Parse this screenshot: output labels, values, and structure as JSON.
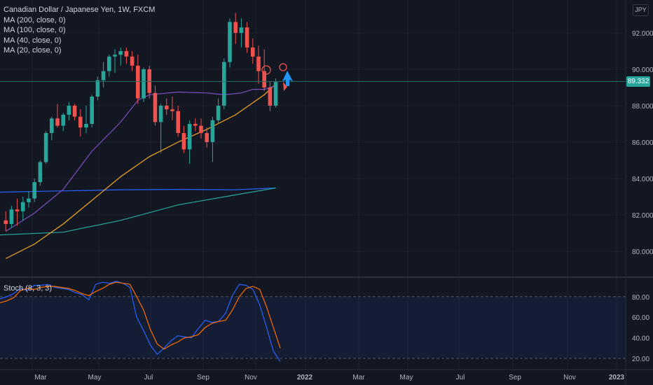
{
  "legend": {
    "symbol": "Canadian Dollar / Japanese Yen, 1W, FXCM",
    "ma_labels": [
      "MA (200, close, 0)",
      "MA (100, close, 0)",
      "MA (40, close, 0)",
      "MA (20, close, 0)"
    ]
  },
  "currency_badge": "JPY",
  "last_price_tag": "89.332",
  "stoch_label": "Stoch (8, 3, 3)",
  "colors": {
    "background": "#131722",
    "grid": "#1e222d",
    "up": "#26a69a",
    "down": "#ef5350",
    "ma20": "#7b4fc0",
    "ma40": "#f5a623",
    "ma100": "#26a69a",
    "ma200": "#2962ff",
    "stoch_k": "#2962ff",
    "stoch_d": "#ff6d00",
    "arrow": "#2196f3"
  },
  "chart_data": [
    {
      "type": "candlestick",
      "title": "Canadian Dollar / Japanese Yen, 1W, FXCM",
      "xlabel": "",
      "ylabel": "",
      "x_ticks": [
        "Mar",
        "May",
        "Jul",
        "Sep",
        "Nov",
        "2022",
        "Mar",
        "May",
        "Jul",
        "Sep",
        "Nov",
        "2023"
      ],
      "y_ticks": [
        "80.000",
        "82.000",
        "84.000",
        "86.000",
        "88.000",
        "90.000",
        "92.000"
      ],
      "ylim": [
        78.5,
        93.3
      ],
      "last_price": 89.332,
      "candles": [
        {
          "o": 81.7,
          "h": 82.2,
          "l": 81.1,
          "c": 81.5
        },
        {
          "o": 81.5,
          "h": 82.5,
          "l": 81.3,
          "c": 82.3
        },
        {
          "o": 82.3,
          "h": 82.9,
          "l": 81.4,
          "c": 82.2
        },
        {
          "o": 82.2,
          "h": 83.0,
          "l": 81.7,
          "c": 82.7
        },
        {
          "o": 82.7,
          "h": 83.3,
          "l": 82.4,
          "c": 82.9
        },
        {
          "o": 82.9,
          "h": 84.0,
          "l": 82.7,
          "c": 83.8
        },
        {
          "o": 83.8,
          "h": 85.0,
          "l": 83.6,
          "c": 84.9
        },
        {
          "o": 84.9,
          "h": 86.6,
          "l": 84.8,
          "c": 86.5
        },
        {
          "o": 86.5,
          "h": 87.4,
          "l": 86.1,
          "c": 87.3
        },
        {
          "o": 87.3,
          "h": 88.1,
          "l": 86.8,
          "c": 86.9
        },
        {
          "o": 86.9,
          "h": 87.6,
          "l": 86.6,
          "c": 87.5
        },
        {
          "o": 87.5,
          "h": 88.2,
          "l": 87.2,
          "c": 88.0
        },
        {
          "o": 88.0,
          "h": 88.1,
          "l": 87.2,
          "c": 87.4
        },
        {
          "o": 87.4,
          "h": 87.8,
          "l": 86.3,
          "c": 86.8
        },
        {
          "o": 86.8,
          "h": 88.0,
          "l": 86.5,
          "c": 87.0
        },
        {
          "o": 87.0,
          "h": 88.6,
          "l": 86.8,
          "c": 88.5
        },
        {
          "o": 88.5,
          "h": 89.6,
          "l": 88.3,
          "c": 89.4
        },
        {
          "o": 89.4,
          "h": 90.4,
          "l": 89.0,
          "c": 89.9
        },
        {
          "o": 89.9,
          "h": 90.8,
          "l": 89.6,
          "c": 90.7
        },
        {
          "o": 90.7,
          "h": 91.1,
          "l": 89.8,
          "c": 90.8
        },
        {
          "o": 90.8,
          "h": 91.2,
          "l": 90.2,
          "c": 91.0
        },
        {
          "o": 91.0,
          "h": 91.2,
          "l": 90.3,
          "c": 90.7
        },
        {
          "o": 90.7,
          "h": 91.0,
          "l": 89.9,
          "c": 90.2
        },
        {
          "o": 90.2,
          "h": 90.8,
          "l": 88.1,
          "c": 88.4
        },
        {
          "o": 88.4,
          "h": 90.1,
          "l": 88.2,
          "c": 90.0
        },
        {
          "o": 90.0,
          "h": 90.2,
          "l": 88.4,
          "c": 88.7
        },
        {
          "o": 88.7,
          "h": 89.1,
          "l": 86.9,
          "c": 87.1
        },
        {
          "o": 87.1,
          "h": 88.1,
          "l": 85.4,
          "c": 88.0
        },
        {
          "o": 88.0,
          "h": 88.4,
          "l": 87.5,
          "c": 87.8
        },
        {
          "o": 87.8,
          "h": 88.5,
          "l": 87.2,
          "c": 87.7
        },
        {
          "o": 87.7,
          "h": 88.0,
          "l": 86.3,
          "c": 86.5
        },
        {
          "o": 86.5,
          "h": 86.9,
          "l": 85.4,
          "c": 85.6
        },
        {
          "o": 85.6,
          "h": 87.2,
          "l": 84.8,
          "c": 87.0
        },
        {
          "o": 87.0,
          "h": 87.3,
          "l": 86.6,
          "c": 86.9
        },
        {
          "o": 86.9,
          "h": 87.3,
          "l": 86.2,
          "c": 86.5
        },
        {
          "o": 86.5,
          "h": 86.8,
          "l": 85.7,
          "c": 86.0
        },
        {
          "o": 86.0,
          "h": 87.4,
          "l": 84.9,
          "c": 87.2
        },
        {
          "o": 87.2,
          "h": 88.4,
          "l": 87.0,
          "c": 88.0
        },
        {
          "o": 88.0,
          "h": 90.6,
          "l": 87.8,
          "c": 90.4
        },
        {
          "o": 90.4,
          "h": 92.8,
          "l": 90.1,
          "c": 92.6
        },
        {
          "o": 92.6,
          "h": 93.1,
          "l": 91.4,
          "c": 92.0
        },
        {
          "o": 92.0,
          "h": 92.8,
          "l": 91.2,
          "c": 92.3
        },
        {
          "o": 92.3,
          "h": 92.6,
          "l": 90.9,
          "c": 91.2
        },
        {
          "o": 91.2,
          "h": 91.7,
          "l": 90.3,
          "c": 90.7
        },
        {
          "o": 90.7,
          "h": 91.3,
          "l": 89.2,
          "c": 89.9
        },
        {
          "o": 89.9,
          "h": 91.1,
          "l": 88.8,
          "c": 89.0
        },
        {
          "o": 89.0,
          "h": 89.3,
          "l": 87.7,
          "c": 88.0
        },
        {
          "o": 88.0,
          "h": 89.5,
          "l": 87.9,
          "c": 89.3
        }
      ],
      "moving_averages": [
        {
          "name": "MA (200, close, 0)",
          "values": [
            [
              0,
              83.25
            ],
            [
              10,
              83.32
            ],
            [
              20,
              83.38
            ],
            [
              30,
              83.4
            ],
            [
              40,
              83.38
            ],
            [
              47,
              83.48
            ]
          ]
        },
        {
          "name": "MA (100, close, 0)",
          "values": [
            [
              0,
              80.9
            ],
            [
              10,
              81.05
            ],
            [
              20,
              81.7
            ],
            [
              30,
              82.55
            ],
            [
              40,
              83.1
            ],
            [
              47,
              83.48
            ]
          ]
        },
        {
          "name": "MA (40, close, 0)",
          "values": [
            [
              0,
              79.6
            ],
            [
              5,
              80.4
            ],
            [
              10,
              81.5
            ],
            [
              15,
              82.8
            ],
            [
              20,
              84.1
            ],
            [
              25,
              85.2
            ],
            [
              30,
              86.0
            ],
            [
              35,
              86.7
            ],
            [
              40,
              87.5
            ],
            [
              45,
              88.6
            ],
            [
              47,
              89.2
            ]
          ]
        },
        {
          "name": "MA (20, close, 0)",
          "values": [
            [
              0,
              81.1
            ],
            [
              5,
              82.1
            ],
            [
              10,
              83.4
            ],
            [
              15,
              85.5
            ],
            [
              20,
              87.1
            ],
            [
              23,
              88.3
            ],
            [
              25,
              88.6
            ],
            [
              30,
              88.75
            ],
            [
              35,
              88.7
            ],
            [
              38,
              88.6
            ],
            [
              41,
              88.7
            ],
            [
              43,
              88.9
            ],
            [
              45,
              88.9
            ],
            [
              47,
              89.1
            ]
          ]
        }
      ]
    },
    {
      "type": "line",
      "title": "Stoch (8, 3, 3)",
      "xlabel": "",
      "ylabel": "",
      "y_ticks": [
        "20.00",
        "40.00",
        "60.00",
        "80.00"
      ],
      "ylim": [
        15,
        100
      ],
      "bands": [
        20,
        80
      ],
      "series": [
        {
          "name": "%K",
          "values": [
            78,
            80,
            83,
            88,
            86,
            91,
            91,
            92,
            89,
            88,
            87,
            84,
            82,
            77,
            92,
            94,
            93,
            95,
            93,
            89,
            60,
            47,
            33,
            24,
            30,
            37,
            42,
            41,
            40,
            49,
            57,
            55,
            56,
            64,
            81,
            92,
            91,
            87,
            72,
            50,
            27,
            17
          ]
        },
        {
          "name": "%D",
          "values": [
            74,
            76,
            79,
            86,
            88,
            87,
            89,
            90,
            90,
            89,
            88,
            86,
            83,
            81,
            85,
            88,
            92,
            94,
            93,
            92,
            80,
            67,
            48,
            34,
            29,
            33,
            36,
            40,
            41,
            43,
            50,
            54,
            56,
            57,
            67,
            80,
            88,
            90,
            87,
            70,
            50,
            30
          ]
        }
      ]
    }
  ]
}
